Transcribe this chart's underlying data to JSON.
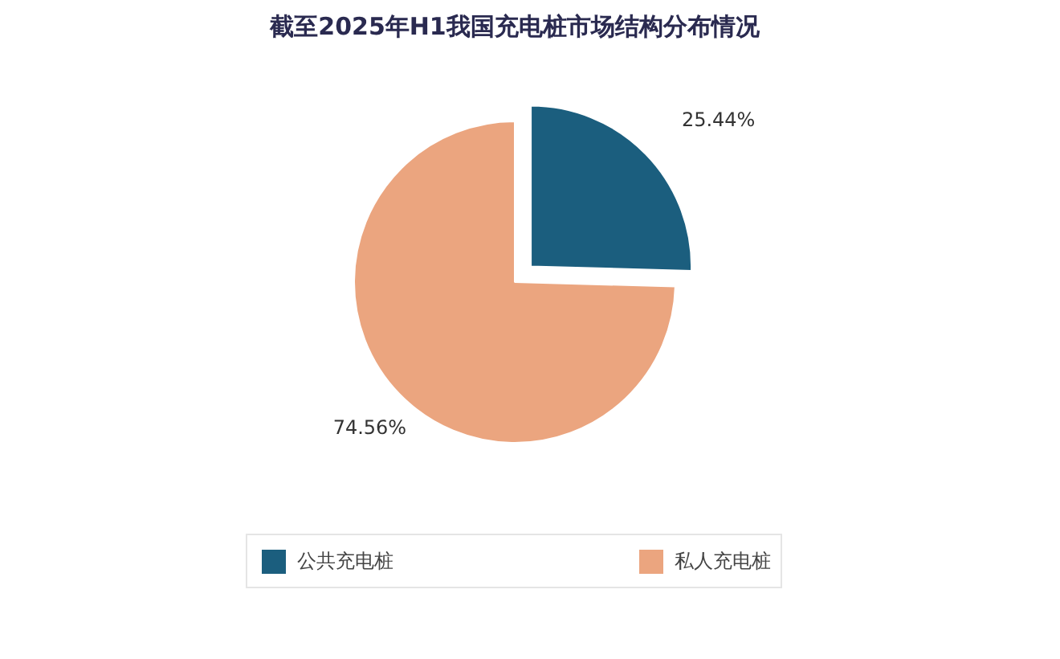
{
  "chart_data": {
    "type": "pie",
    "title": "截至2025年H1我国充电桩市场结构分布情况",
    "categories": [
      "公共充电桩",
      "私人充电桩"
    ],
    "values": [
      25.44,
      74.56
    ],
    "colors": [
      "#1b5e7e",
      "#eba57f"
    ],
    "value_labels": [
      "25.44%",
      "74.56%"
    ],
    "legend": "bottom"
  }
}
